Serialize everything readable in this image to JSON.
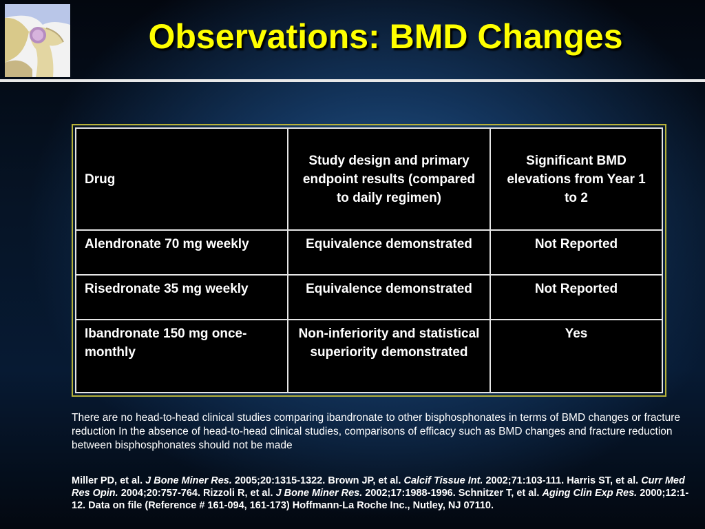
{
  "slide": {
    "title": "Observations: BMD Changes",
    "logo_icon": "hip-joint-bone-icon"
  },
  "table": {
    "headers": [
      "Drug",
      "Study design and primary endpoint results (compared to daily regimen)",
      "Significant BMD elevations from Year 1 to 2"
    ],
    "rows": [
      [
        "Alendronate 70 mg weekly",
        "Equivalence demonstrated",
        "Not Reported"
      ],
      [
        "Risedronate 35 mg weekly",
        "Equivalence demonstrated",
        "Not Reported"
      ],
      [
        "Ibandronate 150 mg once-monthly",
        "Non-inferiority and statistical superiority demonstrated",
        "Yes"
      ]
    ]
  },
  "note": "There are no head-to-head clinical studies comparing ibandronate to other bisphosphonates in terms of BMD changes or fracture reduction In the absence of head-to-head clinical studies, comparisons of efficacy such as BMD changes and fracture reduction between bisphosphonates should not be made",
  "references": {
    "r1_a": "Miller PD, et al. ",
    "r1_j": "J Bone Miner Res.",
    "r1_b": " 2005;20:1315-1322. Brown JP, et al. ",
    "r2_j": "Calcif Tissue Int.",
    "r2_b": " 2002;71:103-111. Harris ST, et al. ",
    "r3_j": "Curr Med Res Opin.",
    "r3_b": " 2004;20:757-764. Rizzoli R, et al. ",
    "r4_j": "J Bone Miner Res.",
    "r4_b": " 2002;17:1988-1996. Schnitzer T, et al. ",
    "r5_j": "Aging Clin Exp Res.",
    "r5_b": " 2000;12:1-12. Data on file (Reference # 161-094, 161-173) Hoffmann-La Roche Inc., Nutley, NJ 07110."
  },
  "colors": {
    "title": "#ffff00",
    "frame": "#b7b23a",
    "inner_border": "#b06a2a"
  }
}
